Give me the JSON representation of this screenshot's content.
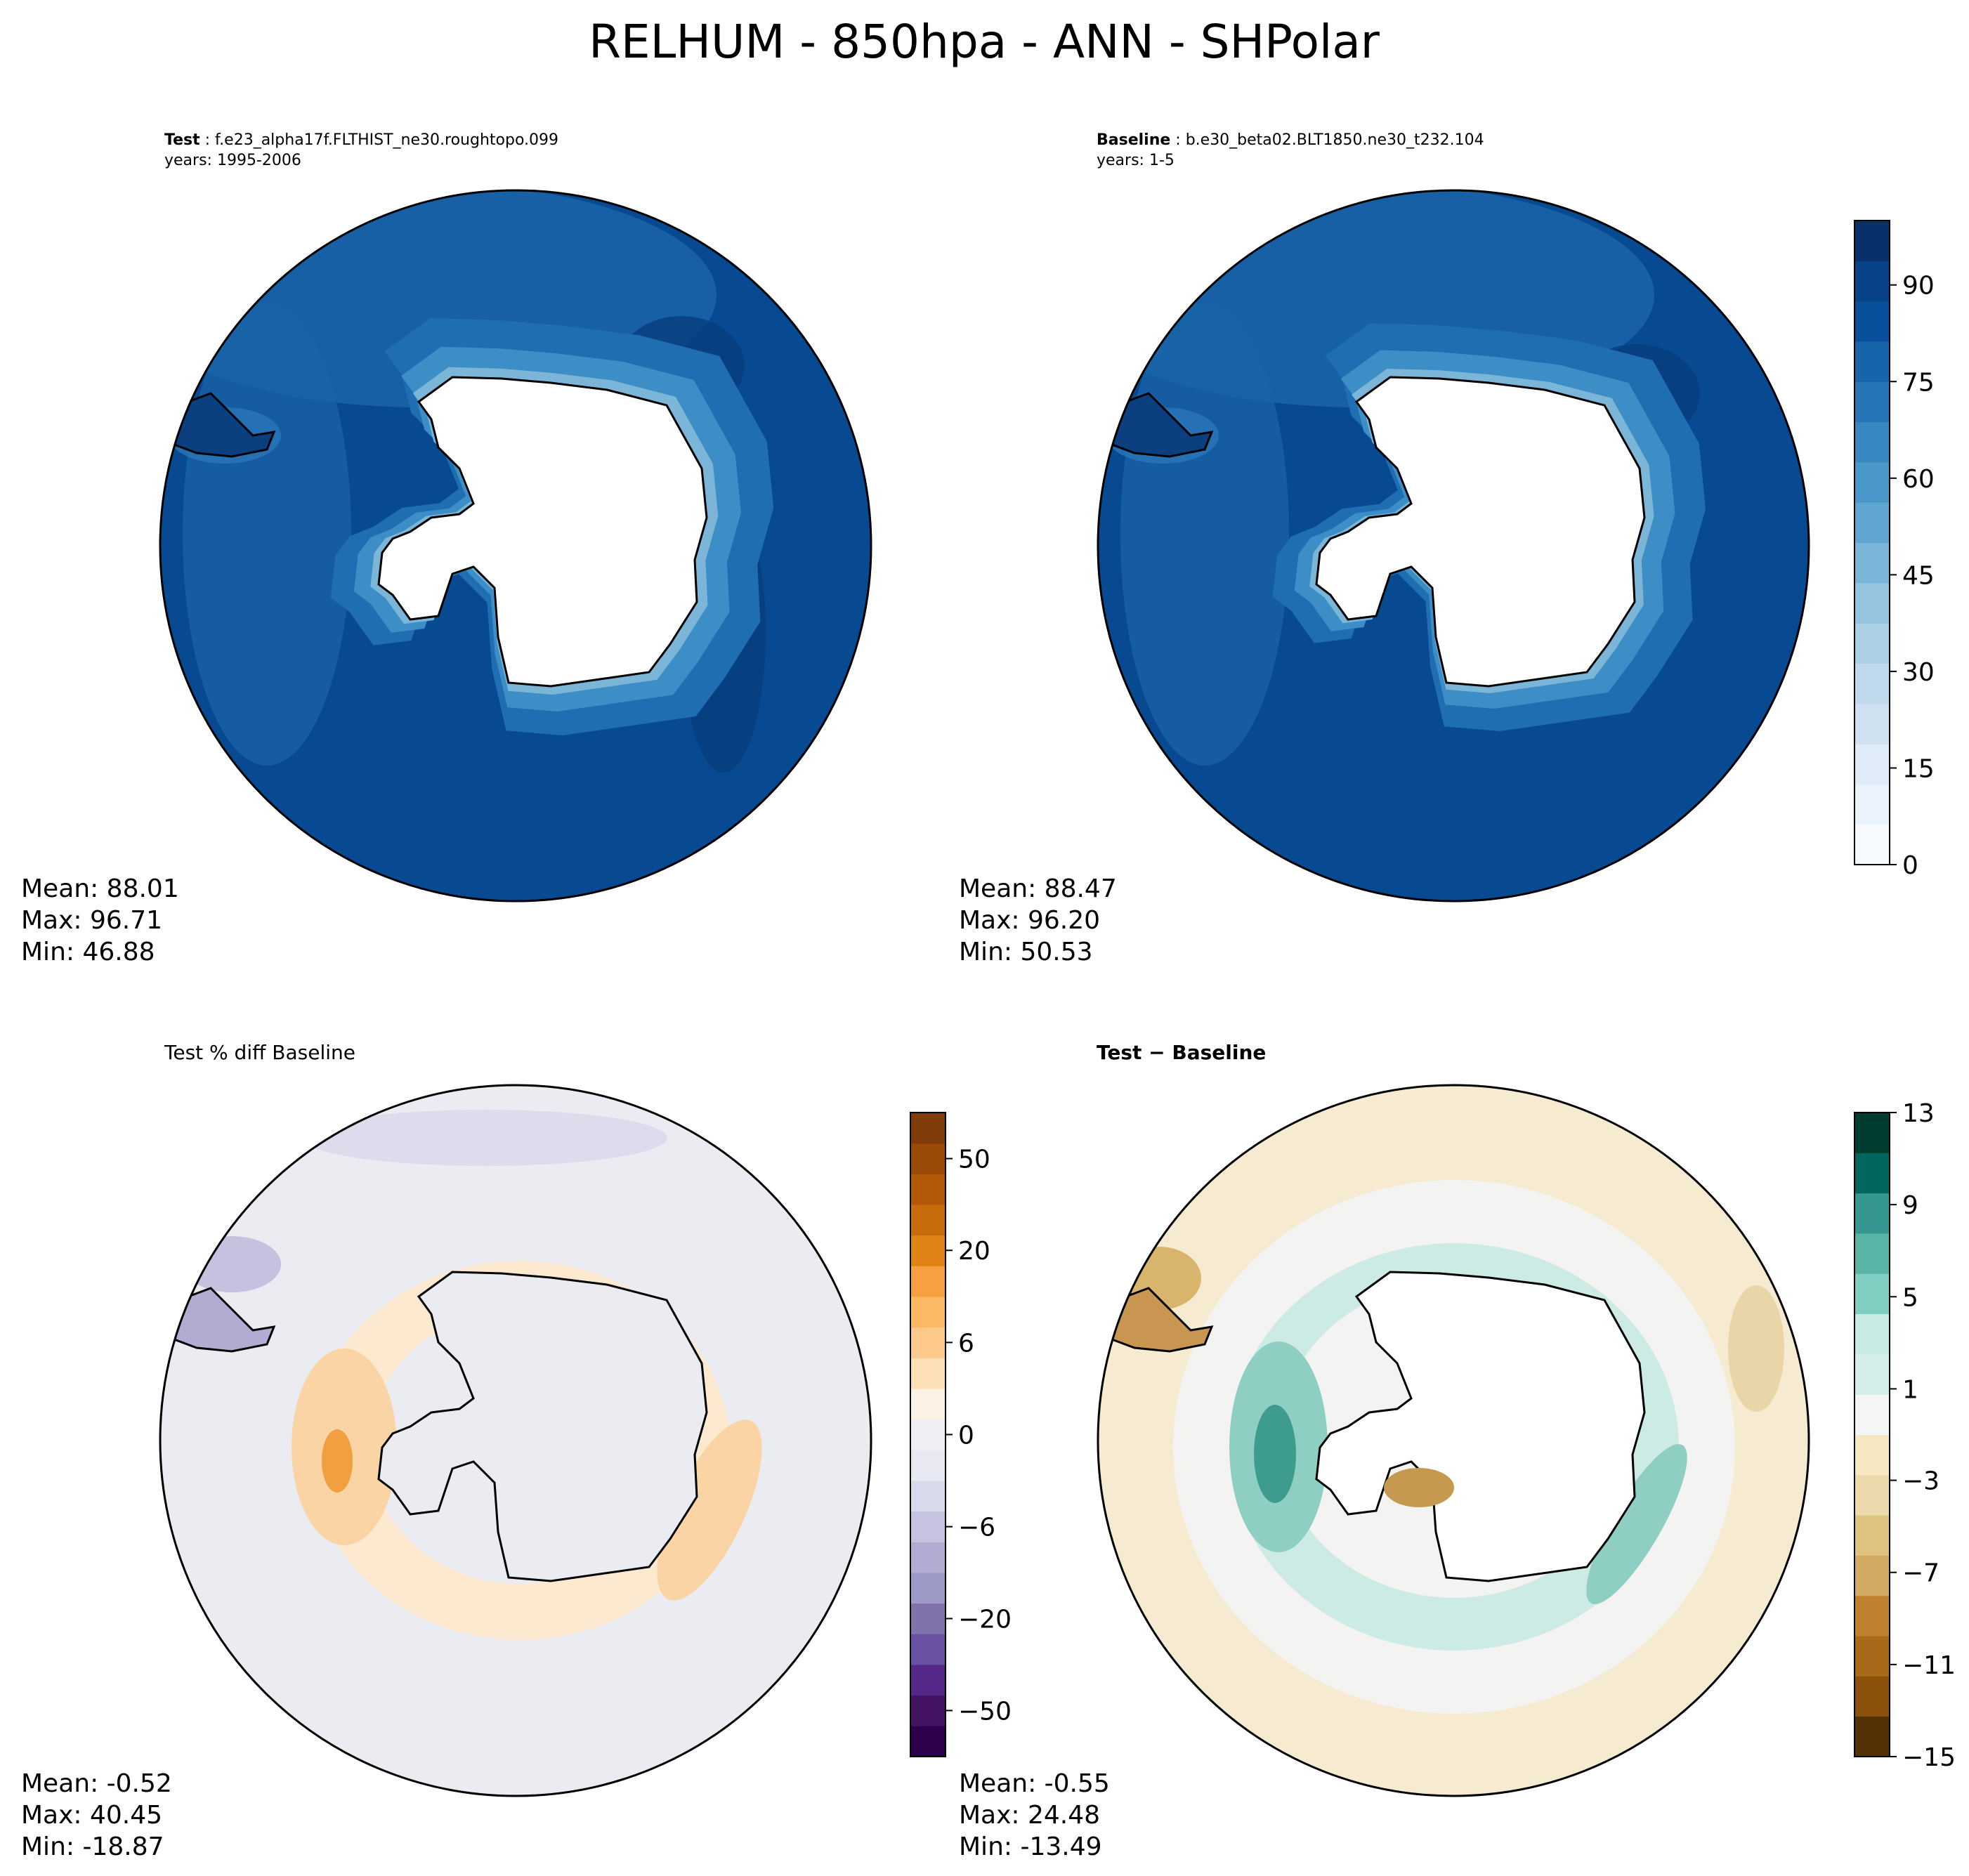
{
  "title": "RELHUM - 850hpa - ANN - SHPolar",
  "panels": {
    "test": {
      "label_bold": "Test",
      "label_rest": " : f.e23_alpha17f.FLTHIST_ne30.roughtopo.099",
      "years": "years: 1995-2006",
      "mean": "Mean: 88.01",
      "max": "Max: 96.71",
      "min": "Min: 46.88"
    },
    "baseline": {
      "label_bold": "Baseline",
      "label_rest": " : b.e30_beta02.BLT1850.ne30_t232.104",
      "years": "years: 1-5",
      "mean": "Mean: 88.47",
      "max": "Max: 96.20",
      "min": "Min: 50.53"
    },
    "pct_diff": {
      "label": "Test % diff Baseline",
      "mean": "Mean: -0.52",
      "max": "Max: 40.45",
      "min": "Min: -18.87"
    },
    "diff": {
      "label": "Test − Baseline",
      "mean": "Mean: -0.55",
      "max": "Max: 24.48",
      "min": "Min: -13.49"
    }
  },
  "colorbars": {
    "relhum": {
      "ticks": [
        "0",
        "15",
        "30",
        "45",
        "60",
        "75",
        "90"
      ],
      "colors": [
        "#f7fbff",
        "#eaf3fb",
        "#dfecf7",
        "#d0e2f2",
        "#c1d9ed",
        "#abd0e6",
        "#94c4df",
        "#7bb6d9",
        "#60a6d2",
        "#4a97c9",
        "#3787c0",
        "#2575b7",
        "#1764ab",
        "#08509b",
        "#084287",
        "#08306b"
      ]
    },
    "pct_diff": {
      "ticks": [
        "−50",
        "−20",
        "−6",
        "0",
        "6",
        "20",
        "50"
      ],
      "colors": [
        "#2d004b",
        "#431263",
        "#542788",
        "#6a51a3",
        "#8073ac",
        "#9e9ac8",
        "#b2abd2",
        "#c6c3e0",
        "#d8daeb",
        "#e8e8f2",
        "#eff0f4",
        "#fbf1e4",
        "#fee0b6",
        "#fdc98a",
        "#fdb863",
        "#f7a041",
        "#e08214",
        "#c86b0c",
        "#b35806",
        "#9a4a07",
        "#7f3b08"
      ]
    },
    "diff": {
      "ticks": [
        "−15",
        "−11",
        "−7",
        "−3",
        "1",
        "5",
        "9",
        "13"
      ],
      "colors": [
        "#543005",
        "#8c510a",
        "#a8691a",
        "#bf812d",
        "#d2ab62",
        "#dfc27d",
        "#ecd9ac",
        "#f6e8c3",
        "#f5f5f5",
        "#d5eee9",
        "#c7eae5",
        "#80cdc1",
        "#5ab4a6",
        "#35978f",
        "#01665e",
        "#003c30"
      ]
    }
  },
  "map_colors": {
    "relhum_ocean": "#084a92",
    "relhum_band": "#1a63a8",
    "relhum_coast": "#5aa2cf",
    "land": "#ffffff",
    "diff_bg": "#f3f3f1",
    "diff_tan": "#eedcb2",
    "diff_teal": "#b8e2da",
    "diff_green": "#5fb3a3",
    "diff_brown": "#b88a3e",
    "pct_bg": "#ebebf2",
    "pct_orange": "#fad4a4",
    "pct_lavender": "#c5c1de"
  }
}
